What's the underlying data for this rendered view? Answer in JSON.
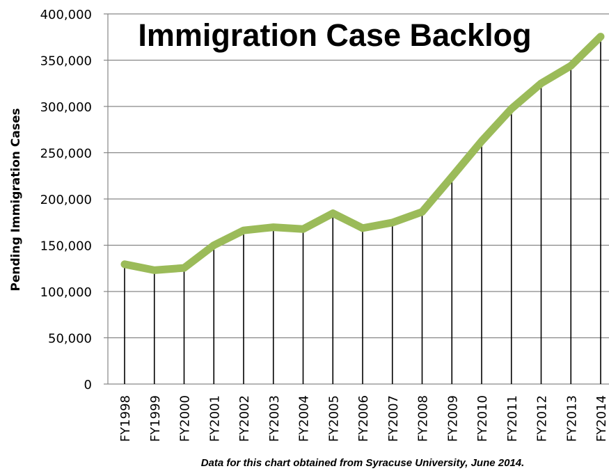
{
  "chart_data": {
    "type": "line",
    "title": "Immigration Case Backlog",
    "ylabel": "Pending Immigration Cases",
    "xlabel": "",
    "source_note": "Data for this chart obtained from Syracuse University, June 2014.",
    "categories": [
      "FY1998",
      "FY1999",
      "FY2000",
      "FY2001",
      "FY2002",
      "FY2003",
      "FY2004",
      "FY2005",
      "FY2006",
      "FY2007",
      "FY2008",
      "FY2009",
      "FY2010",
      "FY2011",
      "FY2012",
      "FY2013",
      "FY2014"
    ],
    "series": [
      {
        "values": [
          129500,
          123000,
          125500,
          150000,
          166000,
          169500,
          167500,
          184500,
          168500,
          174500,
          186000,
          224000,
          262500,
          297500,
          325000,
          344000,
          375500
        ]
      }
    ],
    "ylim": [
      0,
      400000
    ],
    "yticks": [
      "0",
      "50,000",
      "100,000",
      "150,000",
      "200,000",
      "250,000",
      "300,000",
      "350,000",
      "400,000"
    ],
    "ytick_values": [
      0,
      50000,
      100000,
      150000,
      200000,
      250000,
      300000,
      350000,
      400000
    ],
    "grid": true,
    "drop_lines": true,
    "legend": "none",
    "line_color": "#9bbb59",
    "gridline_color": "#868686",
    "dropline_color": "#000000"
  }
}
